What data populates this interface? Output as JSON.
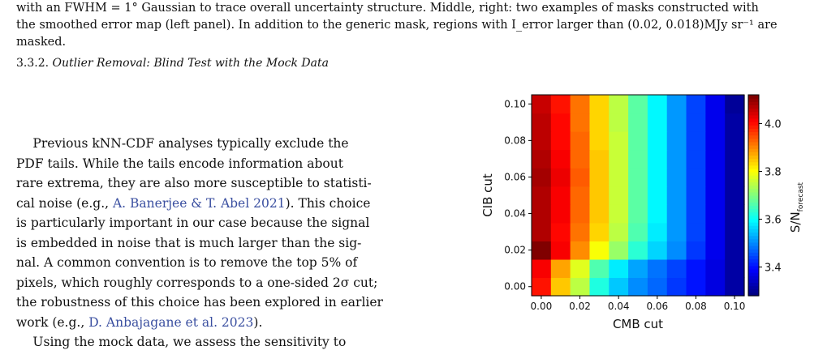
{
  "caption": {
    "lines": [
      "with an FWHM = 1° Gaussian to trace overall uncertainty structure. Middle, right: two examples of masks constructed with",
      "the smoothed error map (left panel). In addition to the generic mask, regions with I_error larger than (0.02, 0.018)MJy sr⁻¹ are",
      "masked."
    ]
  },
  "section": {
    "number": "3.3.2.",
    "title": "Outlier Removal: Blind Test with the Mock Data"
  },
  "body": {
    "lines": [
      [
        "    Previous kNN-CDF analyses typically exclude the"
      ],
      [
        "PDF tails. While the tails encode information about"
      ],
      [
        "rare extrema, they are also more susceptible to statisti-"
      ],
      [
        "cal noise (e.g., ",
        {
          "cite": "A. Banerjee & T. Abel 2021"
        },
        "). This choice"
      ],
      [
        "is particularly important in our case because the signal"
      ],
      [
        "is embedded in noise that is much larger than the sig-"
      ],
      [
        "nal. A common convention is to remove the top 5% of"
      ],
      [
        "pixels, which roughly corresponds to a one-sided 2σ cut;"
      ],
      [
        "the robustness of this choice has been explored in earlier"
      ],
      [
        "work (e.g., ",
        {
          "cite": "D. Anbajagane et al. 2023"
        },
        ")."
      ],
      [
        "    Using the mock data, we assess the sensitivity to"
      ]
    ]
  },
  "chart_data": {
    "type": "heatmap",
    "xlabel": "CMB cut",
    "ylabel": "CIB cut",
    "colorbar_label": "S/N_forecast",
    "x_ticks": [
      "0.00",
      "0.02",
      "0.04",
      "0.06",
      "0.08",
      "0.10"
    ],
    "y_ticks": [
      "0.00",
      "0.02",
      "0.04",
      "0.06",
      "0.08",
      "0.10"
    ],
    "colorbar_ticks": [
      3.4,
      3.6,
      3.8,
      4.0
    ],
    "vmin": 3.28,
    "vmax": 4.12,
    "x": [
      0.0,
      0.01,
      0.02,
      0.03,
      0.04,
      0.05,
      0.06,
      0.07,
      0.08,
      0.09,
      0.1
    ],
    "y": [
      0.0,
      0.01,
      0.02,
      0.03,
      0.04,
      0.05,
      0.06,
      0.07,
      0.08,
      0.09,
      0.1
    ],
    "values": [
      [
        4.0,
        3.85,
        3.75,
        3.62,
        3.55,
        3.5,
        3.47,
        3.43,
        3.4,
        3.36,
        3.31
      ],
      [
        4.02,
        3.88,
        3.78,
        3.66,
        3.58,
        3.52,
        3.48,
        3.44,
        3.4,
        3.36,
        3.31
      ],
      [
        4.12,
        4.02,
        3.9,
        3.8,
        3.72,
        3.63,
        3.56,
        3.5,
        3.43,
        3.37,
        3.31
      ],
      [
        4.08,
        4.01,
        3.92,
        3.84,
        3.75,
        3.66,
        3.58,
        3.51,
        3.44,
        3.37,
        3.31
      ],
      [
        4.08,
        4.02,
        3.93,
        3.85,
        3.76,
        3.67,
        3.59,
        3.51,
        3.44,
        3.37,
        3.31
      ],
      [
        4.08,
        4.02,
        3.93,
        3.85,
        3.76,
        3.67,
        3.59,
        3.51,
        3.44,
        3.37,
        3.31
      ],
      [
        4.09,
        4.03,
        3.94,
        3.85,
        3.76,
        3.67,
        3.59,
        3.51,
        3.44,
        3.37,
        3.31
      ],
      [
        4.08,
        4.02,
        3.93,
        3.85,
        3.76,
        3.67,
        3.59,
        3.51,
        3.44,
        3.37,
        3.31
      ],
      [
        4.07,
        4.01,
        3.93,
        3.84,
        3.76,
        3.67,
        3.59,
        3.51,
        3.44,
        3.37,
        3.31
      ],
      [
        4.07,
        4.01,
        3.92,
        3.84,
        3.75,
        3.67,
        3.59,
        3.51,
        3.44,
        3.37,
        3.31
      ],
      [
        4.06,
        4.0,
        3.92,
        3.84,
        3.75,
        3.67,
        3.59,
        3.51,
        3.44,
        3.37,
        3.3
      ]
    ]
  }
}
